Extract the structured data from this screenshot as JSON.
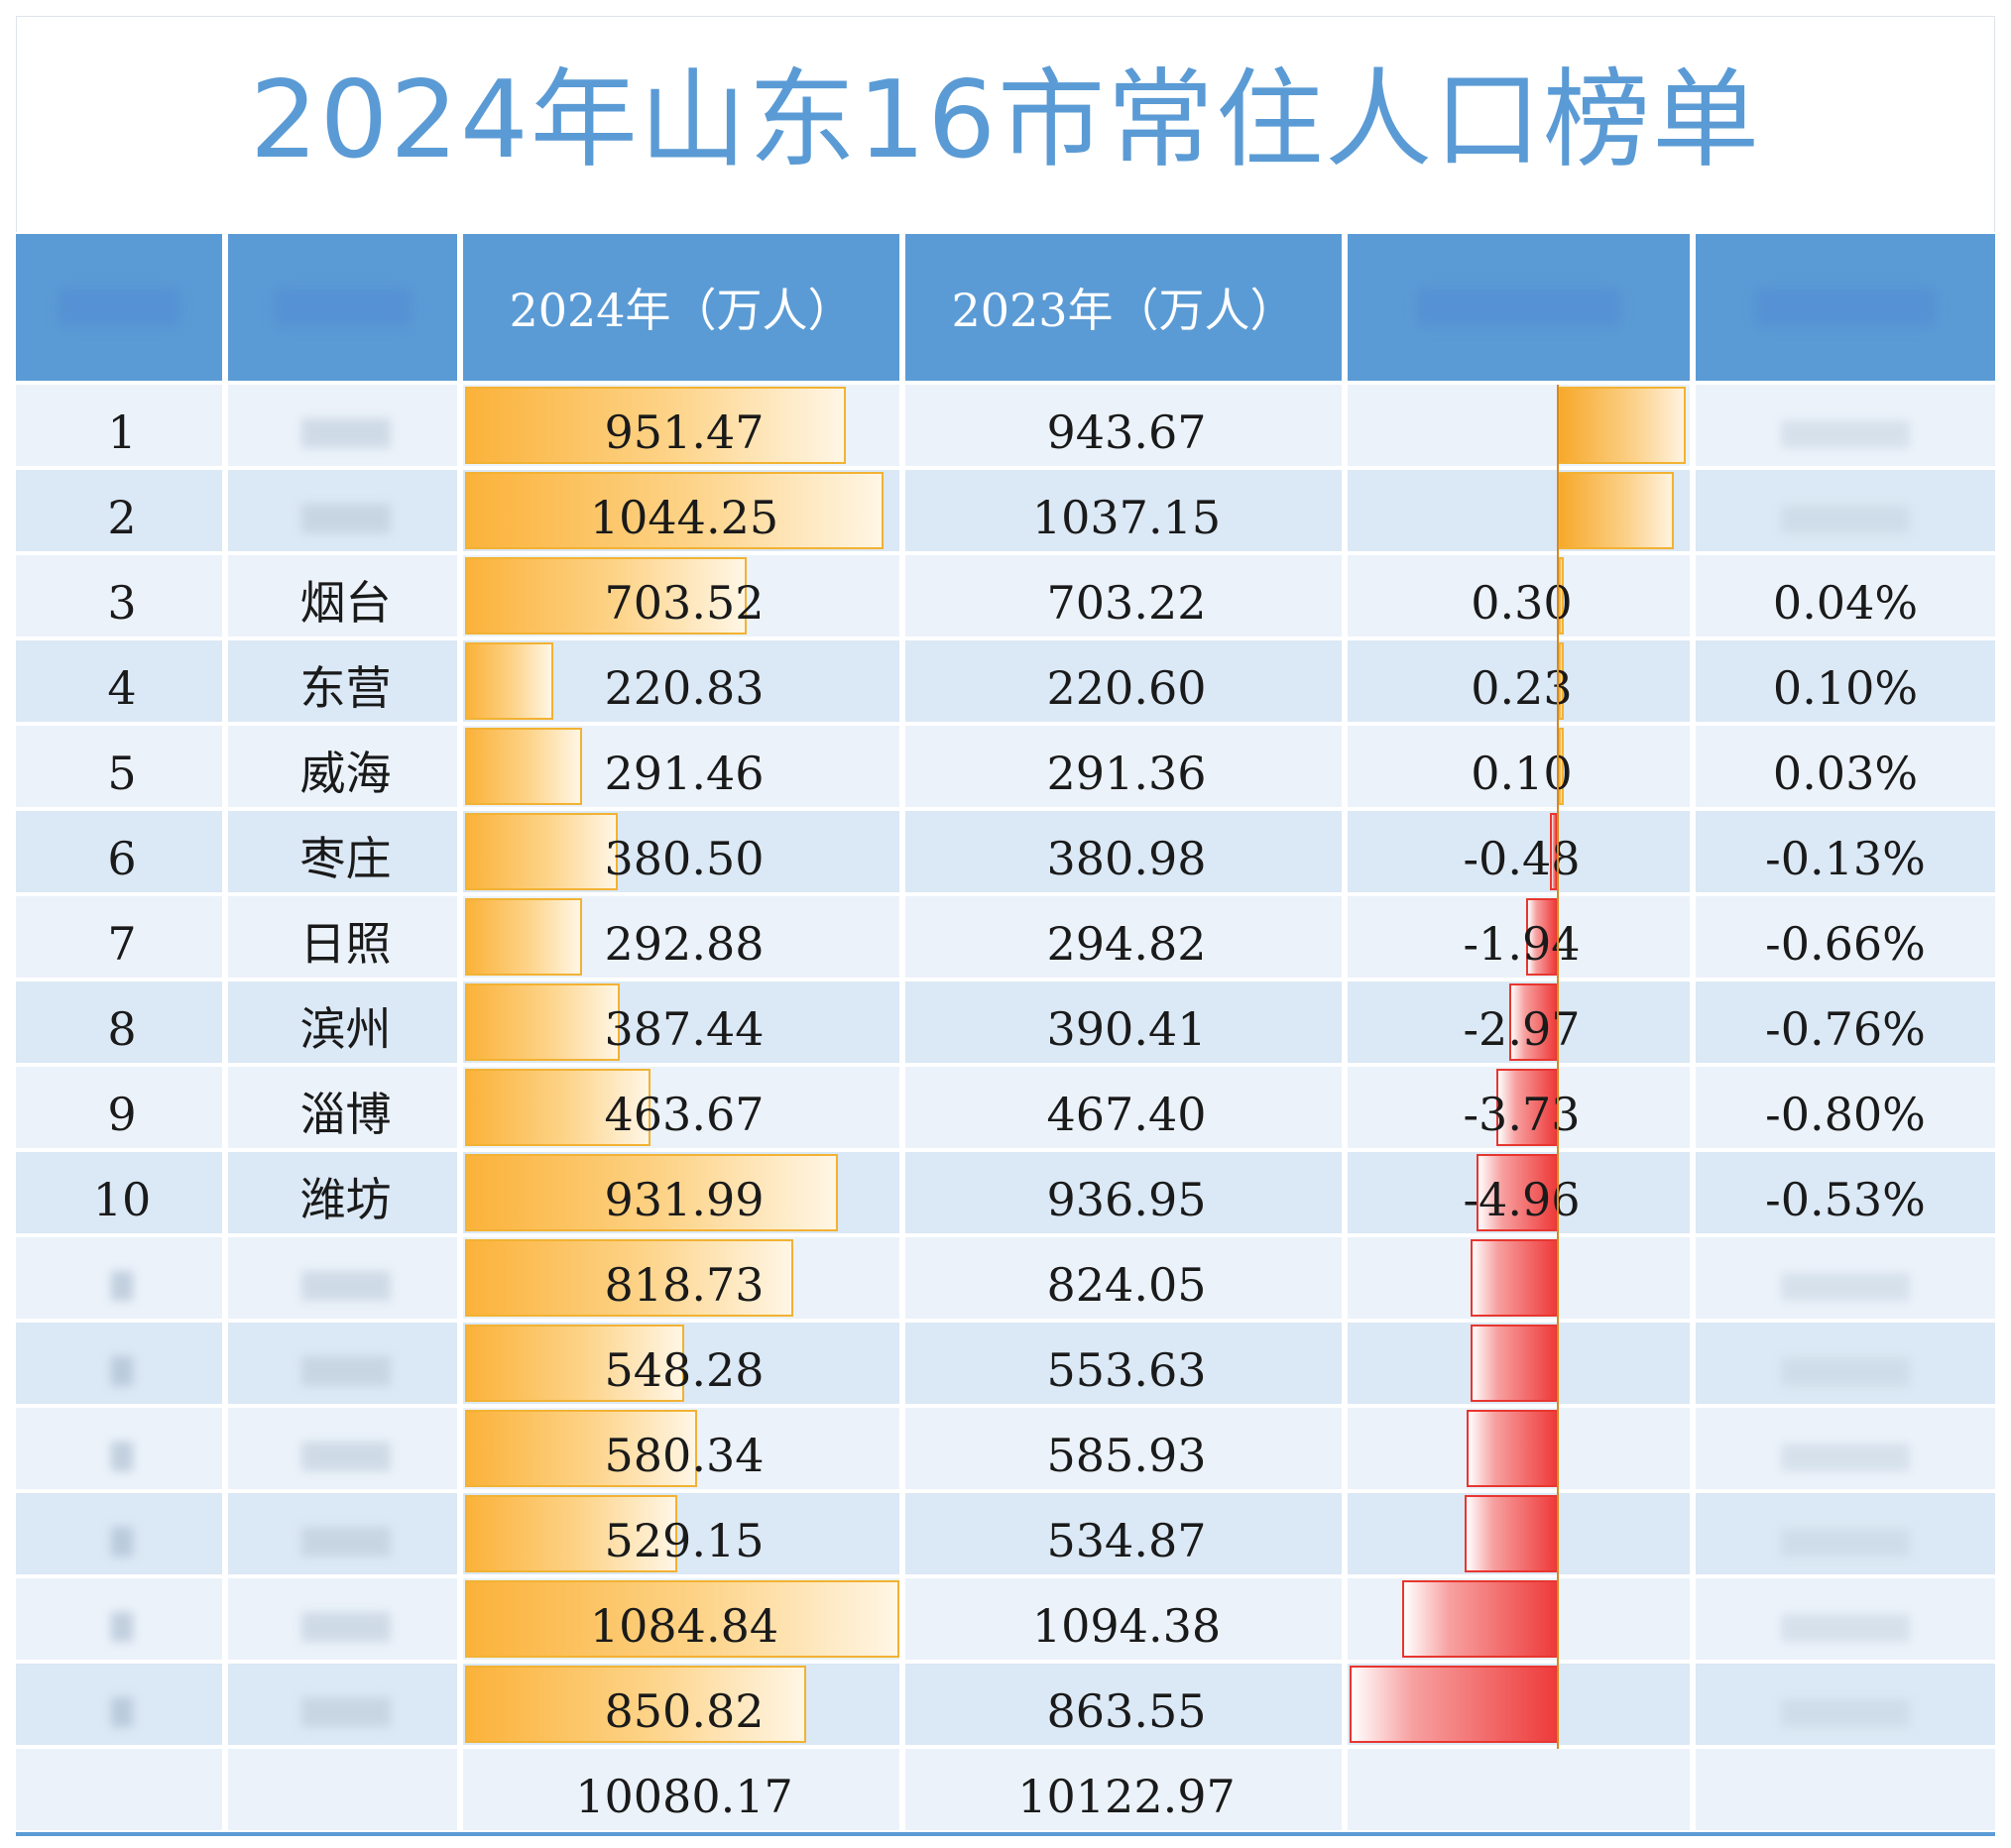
{
  "title": "2024年山东16市常住人口榜单",
  "headers": [
    "",
    "",
    "2024年（万人）",
    "2023年（万人）",
    "",
    ""
  ],
  "chart_data": {
    "type": "table",
    "title": "2024年山东16市常住人口榜单",
    "columns": [
      "",
      "",
      "2024年（万人）",
      "2023年（万人）",
      "",
      ""
    ],
    "rows": [
      {
        "rank": "1",
        "city": "",
        "pop2024": "951.47",
        "pop2023": "943.67",
        "change": "",
        "rate": "",
        "v2024": 951.47,
        "vchange": 7.8
      },
      {
        "rank": "2",
        "city": "",
        "pop2024": "1044.25",
        "pop2023": "1037.15",
        "change": "",
        "rate": "",
        "v2024": 1044.25,
        "vchange": 7.1
      },
      {
        "rank": "3",
        "city": "烟台",
        "pop2024": "703.52",
        "pop2023": "703.22",
        "change": "0.30",
        "rate": "0.04%",
        "v2024": 703.52,
        "vchange": 0.3
      },
      {
        "rank": "4",
        "city": "东营",
        "pop2024": "220.83",
        "pop2023": "220.60",
        "change": "0.23",
        "rate": "0.10%",
        "v2024": 220.83,
        "vchange": 0.23
      },
      {
        "rank": "5",
        "city": "威海",
        "pop2024": "291.46",
        "pop2023": "291.36",
        "change": "0.10",
        "rate": "0.03%",
        "v2024": 291.46,
        "vchange": 0.1
      },
      {
        "rank": "6",
        "city": "枣庄",
        "pop2024": "380.50",
        "pop2023": "380.98",
        "change": "-0.48",
        "rate": "-0.13%",
        "v2024": 380.5,
        "vchange": -0.48
      },
      {
        "rank": "7",
        "city": "日照",
        "pop2024": "292.88",
        "pop2023": "294.82",
        "change": "-1.94",
        "rate": "-0.66%",
        "v2024": 292.88,
        "vchange": -1.94
      },
      {
        "rank": "8",
        "city": "滨州",
        "pop2024": "387.44",
        "pop2023": "390.41",
        "change": "-2.97",
        "rate": "-0.76%",
        "v2024": 387.44,
        "vchange": -2.97
      },
      {
        "rank": "9",
        "city": "淄博",
        "pop2024": "463.67",
        "pop2023": "467.40",
        "change": "-3.73",
        "rate": "-0.80%",
        "v2024": 463.67,
        "vchange": -3.73
      },
      {
        "rank": "10",
        "city": "潍坊",
        "pop2024": "931.99",
        "pop2023": "936.95",
        "change": "-4.96",
        "rate": "-0.53%",
        "v2024": 931.99,
        "vchange": -4.96
      },
      {
        "rank": "",
        "city": "",
        "pop2024": "818.73",
        "pop2023": "824.05",
        "change": "",
        "rate": "",
        "v2024": 818.73,
        "vchange": -5.32
      },
      {
        "rank": "",
        "city": "",
        "pop2024": "548.28",
        "pop2023": "553.63",
        "change": "",
        "rate": "",
        "v2024": 548.28,
        "vchange": -5.35
      },
      {
        "rank": "",
        "city": "",
        "pop2024": "580.34",
        "pop2023": "585.93",
        "change": "",
        "rate": "",
        "v2024": 580.34,
        "vchange": -5.59
      },
      {
        "rank": "",
        "city": "",
        "pop2024": "529.15",
        "pop2023": "534.87",
        "change": "",
        "rate": "",
        "v2024": 529.15,
        "vchange": -5.72
      },
      {
        "rank": "",
        "city": "",
        "pop2024": "1084.84",
        "pop2023": "1094.38",
        "change": "",
        "rate": "",
        "v2024": 1084.84,
        "vchange": -9.54
      },
      {
        "rank": "",
        "city": "",
        "pop2024": "850.82",
        "pop2023": "863.55",
        "change": "",
        "rate": "",
        "v2024": 850.82,
        "vchange": -12.73
      }
    ],
    "total": {
      "pop2024": "10080.17",
      "pop2023": "10122.97"
    },
    "colors": {
      "header": "#5b9bd5",
      "row_odd": "#ebf2fa",
      "row_even": "#dbe8f5",
      "bar_pop": "#fbb23a",
      "bar_neg": "#ee3b3b"
    }
  }
}
